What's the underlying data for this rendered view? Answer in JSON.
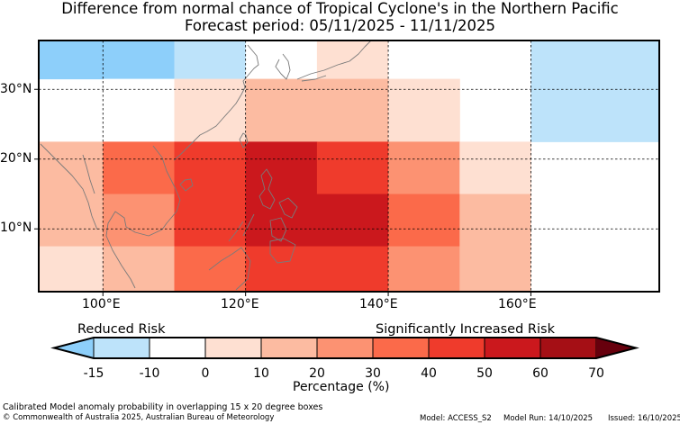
{
  "title_line1": "Difference from normal chance of Tropical Cyclone's in the Northern Pacific",
  "title_line2": "Forecast period: 05/11/2025 - 11/11/2025",
  "chart_data": {
    "type": "heatmap",
    "description_units": "Percentage (%) difference from normal chance",
    "lon_range": [
      91,
      178
    ],
    "lat_range": [
      1,
      37
    ],
    "lon_ticks": [
      100,
      120,
      140,
      160
    ],
    "lon_tick_labels": [
      "100°E",
      "120°E",
      "140°E",
      "160°E"
    ],
    "lat_ticks": [
      10,
      20,
      30
    ],
    "lat_tick_labels": [
      "10°N",
      "20°N",
      "30°N"
    ],
    "cells": [
      {
        "lon": [
          91,
          100
        ],
        "lat": [
          31.5,
          37
        ],
        "level": -15
      },
      {
        "lon": [
          100,
          110
        ],
        "lat": [
          31.5,
          37
        ],
        "level": -15
      },
      {
        "lon": [
          110,
          120
        ],
        "lat": [
          31.5,
          37
        ],
        "level": -10
      },
      {
        "lon": [
          120,
          130
        ],
        "lat": [
          31.5,
          37
        ],
        "level": 0
      },
      {
        "lon": [
          130,
          140
        ],
        "lat": [
          31.5,
          37
        ],
        "level": 10
      },
      {
        "lon": [
          140,
          150
        ],
        "lat": [
          31.5,
          37
        ],
        "level": 0
      },
      {
        "lon": [
          160,
          178
        ],
        "lat": [
          31.5,
          37
        ],
        "level": -10
      },
      {
        "lon": [
          100,
          110
        ],
        "lat": [
          22.5,
          31.5
        ],
        "level": 0
      },
      {
        "lon": [
          110,
          120
        ],
        "lat": [
          22.5,
          31.5
        ],
        "level": 10
      },
      {
        "lon": [
          120,
          140
        ],
        "lat": [
          22.5,
          31.5
        ],
        "level": 20
      },
      {
        "lon": [
          140,
          150
        ],
        "lat": [
          22.5,
          31.5
        ],
        "level": 10
      },
      {
        "lon": [
          160,
          178
        ],
        "lat": [
          22.5,
          31.5
        ],
        "level": -10
      },
      {
        "lon": [
          91,
          100
        ],
        "lat": [
          15,
          22.5
        ],
        "level": 20
      },
      {
        "lon": [
          100,
          110
        ],
        "lat": [
          15,
          22.5
        ],
        "level": 40
      },
      {
        "lon": [
          110,
          120
        ],
        "lat": [
          15,
          22.5
        ],
        "level": 50
      },
      {
        "lon": [
          120,
          130
        ],
        "lat": [
          15,
          22.5
        ],
        "level": 60
      },
      {
        "lon": [
          130,
          140
        ],
        "lat": [
          15,
          22.5
        ],
        "level": 50
      },
      {
        "lon": [
          140,
          150
        ],
        "lat": [
          15,
          22.5
        ],
        "level": 30
      },
      {
        "lon": [
          150,
          160
        ],
        "lat": [
          15,
          22.5
        ],
        "level": 10
      },
      {
        "lon": [
          91,
          100
        ],
        "lat": [
          7.5,
          15
        ],
        "level": 20
      },
      {
        "lon": [
          100,
          110
        ],
        "lat": [
          7.5,
          15
        ],
        "level": 30
      },
      {
        "lon": [
          110,
          120
        ],
        "lat": [
          7.5,
          15
        ],
        "level": 50
      },
      {
        "lon": [
          120,
          140
        ],
        "lat": [
          7.5,
          15
        ],
        "level": 60
      },
      {
        "lon": [
          140,
          150
        ],
        "lat": [
          7.5,
          15
        ],
        "level": 40
      },
      {
        "lon": [
          150,
          160
        ],
        "lat": [
          7.5,
          15
        ],
        "level": 20
      },
      {
        "lon": [
          160,
          170
        ],
        "lat": [
          7.5,
          15
        ],
        "level": 0
      },
      {
        "lon": [
          91,
          100
        ],
        "lat": [
          1,
          7.5
        ],
        "level": 10
      },
      {
        "lon": [
          100,
          110
        ],
        "lat": [
          1,
          7.5
        ],
        "level": 20
      },
      {
        "lon": [
          110,
          120
        ],
        "lat": [
          1,
          7.5
        ],
        "level": 40
      },
      {
        "lon": [
          120,
          140
        ],
        "lat": [
          1,
          7.5
        ],
        "level": 50
      },
      {
        "lon": [
          140,
          150
        ],
        "lat": [
          1,
          7.5
        ],
        "level": 30
      },
      {
        "lon": [
          150,
          160
        ],
        "lat": [
          1,
          7.5
        ],
        "level": 20
      },
      {
        "lon": [
          160,
          170
        ],
        "lat": [
          1,
          7.5
        ],
        "level": 0
      }
    ]
  },
  "colorbar": {
    "colors": [
      "#8dcffa",
      "#bde3fa",
      "#ffffff",
      "#fee0d2",
      "#fcbba1",
      "#fc9272",
      "#fb6a4a",
      "#ef3b2c",
      "#cb181d",
      "#a50f15",
      "#67000d"
    ],
    "ticks": [
      "-15",
      "-10",
      "0",
      "10",
      "20",
      "30",
      "40",
      "50",
      "60",
      "70"
    ],
    "label_left": "Reduced Risk",
    "label_right": "Significantly Increased Risk",
    "axis_label": "Percentage (%)"
  },
  "footer": {
    "line1": "Calibrated Model anomaly probability in overlapping 15 x 20 degree boxes",
    "copyright": "© Commonwealth of Australia 2025, Australian Bureau of Meteorology",
    "model": "Model: ACCESS_S2",
    "model_run": "Model Run: 14/10/2025",
    "issued": "Issued: 16/10/2025"
  }
}
